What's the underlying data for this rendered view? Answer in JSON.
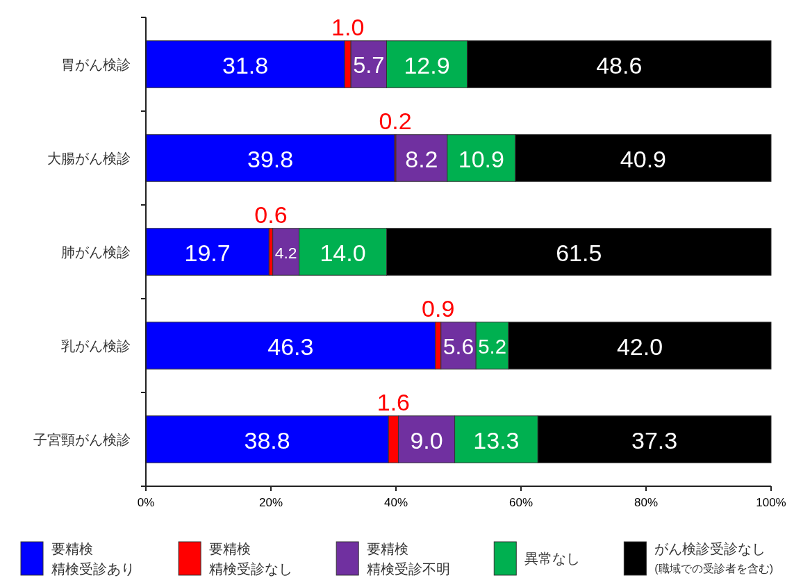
{
  "chart_data": {
    "type": "bar",
    "orientation": "horizontal",
    "stacked": true,
    "categories": [
      "胃がん検診",
      "大腸がん検診",
      "肺がん検診",
      "乳がん検診",
      "子宮頸がん検診"
    ],
    "xlim": [
      0,
      100
    ],
    "xticks": [
      {
        "value": 0,
        "label": "0%"
      },
      {
        "value": 20,
        "label": "20%"
      },
      {
        "value": 40,
        "label": "40%"
      },
      {
        "value": 60,
        "label": "60%"
      },
      {
        "value": 80,
        "label": "80%"
      },
      {
        "value": 100,
        "label": "100%"
      }
    ],
    "legend": "bottom",
    "series": [
      {
        "name": "要精検精検受診あり",
        "color": "#0000ff",
        "values": [
          31.8,
          39.8,
          19.7,
          46.3,
          38.8
        ],
        "value_labels": [
          "31.8",
          "39.8",
          "19.7",
          "46.3",
          "38.8"
        ]
      },
      {
        "name": "要精検精検受診なし",
        "color": "#ff0000",
        "values": [
          1.0,
          0.2,
          0.6,
          0.9,
          1.6
        ],
        "value_labels": [
          "1.0",
          "0.2",
          "0.6",
          "0.9",
          "1.6"
        ]
      },
      {
        "name": "要精検精検受診不明",
        "color": "#7030a0",
        "values": [
          5.7,
          8.2,
          4.2,
          5.6,
          9.0
        ],
        "value_labels": [
          "5.7",
          "8.2",
          "4.2",
          "5.6",
          "9.0"
        ]
      },
      {
        "name": "異常なし",
        "color": "#00b050",
        "values": [
          12.9,
          10.9,
          14.0,
          5.2,
          13.3
        ],
        "value_labels": [
          "12.9",
          "10.9",
          "14.0",
          "5.2",
          "13.3"
        ]
      },
      {
        "name": "がん検診受診なし(職域での受診者を含む)",
        "color": "#000000",
        "values": [
          48.6,
          40.9,
          61.5,
          42.0,
          37.3
        ],
        "value_labels": [
          "48.6",
          "40.9",
          "61.5",
          "42.0",
          "37.3"
        ]
      }
    ]
  }
}
